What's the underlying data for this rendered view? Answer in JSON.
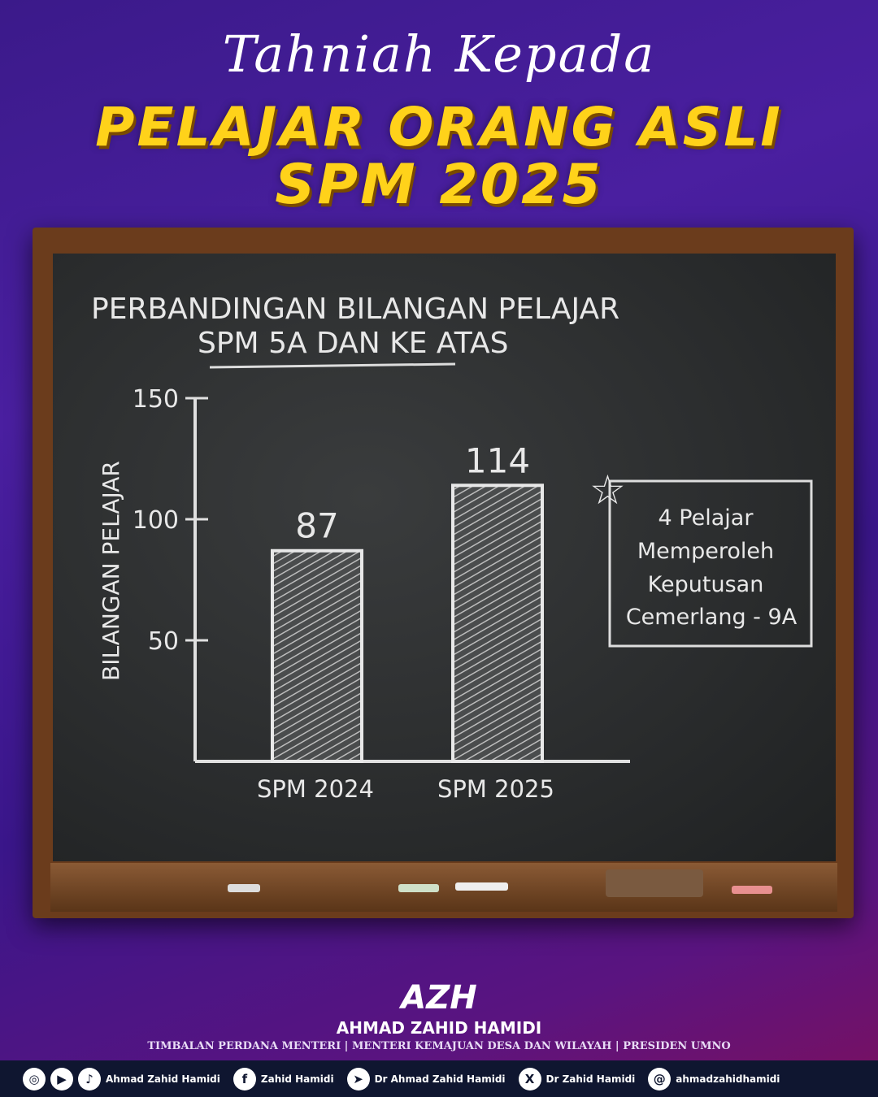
{
  "header": {
    "script": "Tahniah Kepada",
    "line1": "PELAJAR ORANG ASLI",
    "line2": "SPM 2025"
  },
  "chart_data": {
    "type": "bar",
    "title": "PERBANDINGAN BILANGAN PELAJAR",
    "subtitle": "SPM 5A DAN KE ATAS",
    "ylabel": "BILANGAN PELAJAR",
    "xlabel": "",
    "categories": [
      "SPM 2024",
      "SPM 2025"
    ],
    "values": [
      87,
      114
    ],
    "ylim": [
      0,
      150
    ],
    "yticks": [
      50,
      100,
      150
    ],
    "grid": false,
    "annotation": [
      "4 Pelajar",
      "Memperoleh",
      "Keputusan",
      "Cemerlang - 9A"
    ]
  },
  "footer": {
    "logo": "AZH",
    "name": "AHMAD ZAHID HAMIDI",
    "roles": "TIMBALAN PERDANA MENTERI  | MENTERI KEMAJUAN DESA DAN WILAYAH |  PRESIDEN UMNO",
    "social": [
      {
        "icon": "instagram-icon",
        "glyph": "◎"
      },
      {
        "icon": "youtube-icon",
        "glyph": "▶"
      },
      {
        "icon": "tiktok-icon",
        "glyph": "♪",
        "text": "Ahmad Zahid Hamidi"
      },
      {
        "icon": "facebook-icon",
        "glyph": "f",
        "text": "Zahid Hamidi"
      },
      {
        "icon": "telegram-icon",
        "glyph": "➤",
        "text": "Dr Ahmad Zahid Hamidi"
      },
      {
        "icon": "x-icon",
        "glyph": "X",
        "text": "Dr Zahid Hamidi"
      },
      {
        "icon": "threads-icon",
        "glyph": "@",
        "text": "ahmadzahidhamidi"
      }
    ]
  }
}
